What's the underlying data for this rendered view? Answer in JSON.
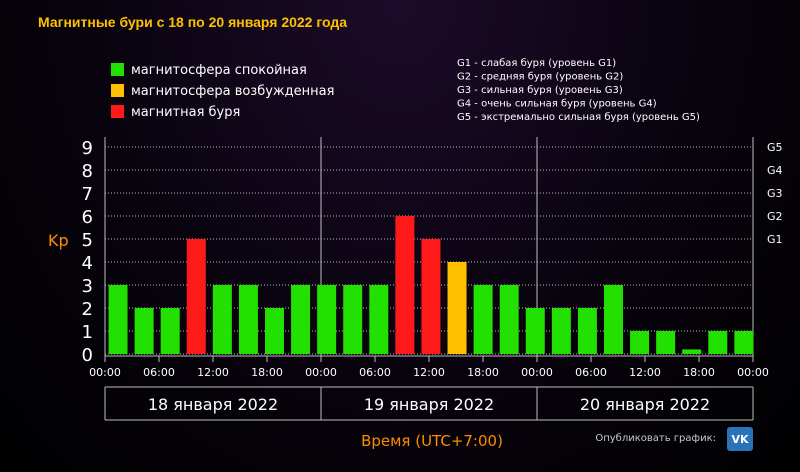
{
  "chart_data": {
    "type": "bar",
    "title": "Магнитные бури с 18 по 20 января 2022 года",
    "ylabel": "Kp",
    "xlabel": "Время (UTC+7:00)",
    "ylim": [
      0,
      9
    ],
    "yticks": [
      "0",
      "1",
      "2",
      "3",
      "4",
      "5",
      "6",
      "7",
      "8",
      "9"
    ],
    "storm_levels": [
      {
        "kp": 5,
        "label": "G1"
      },
      {
        "kp": 6,
        "label": "G2"
      },
      {
        "kp": 7,
        "label": "G3"
      },
      {
        "kp": 8,
        "label": "G4"
      },
      {
        "kp": 9,
        "label": "G5"
      }
    ],
    "xtick_labels": [
      "00:00",
      "06:00",
      "12:00",
      "18:00",
      "00:00",
      "06:00",
      "12:00",
      "18:00",
      "00:00",
      "06:00",
      "12:00",
      "18:00",
      "00:00"
    ],
    "days": [
      "18 января 2022",
      "19 января 2022",
      "20 января 2022"
    ],
    "values": [
      3,
      2,
      2,
      5,
      3,
      3,
      2,
      3,
      3,
      3,
      3,
      6,
      5,
      4,
      3,
      3,
      2,
      2,
      2,
      3,
      1,
      1,
      0.2,
      1,
      1
    ],
    "status": [
      "green",
      "green",
      "green",
      "red",
      "green",
      "green",
      "green",
      "green",
      "green",
      "green",
      "green",
      "red",
      "red",
      "orange",
      "green",
      "green",
      "green",
      "green",
      "green",
      "green",
      "green",
      "green",
      "green",
      "green",
      "green"
    ],
    "colors": {
      "green": "#22e000",
      "orange": "#ffc000",
      "red": "#ff1a1a",
      "title": "#ffc000",
      "axis_label": "#ff8c00",
      "grid": "#bdbdbd",
      "text": "#ffffff"
    },
    "legend": [
      {
        "label": "магнитосфера спокойная",
        "color": "#22e000"
      },
      {
        "label": "магнитосфера возбужденная",
        "color": "#ffc000"
      },
      {
        "label": "магнитная буря",
        "color": "#ff1a1a"
      }
    ],
    "storm_legend": [
      "G1 - слабая буря (уровень G1)",
      "G2 - средняя буря (уровень G2)",
      "G3 - сильная буря (уровень G3)",
      "G4 - очень сильная буря (уровень G4)",
      "G5 - экстремально сильная буря (уровень G5)"
    ],
    "grid": true
  },
  "footer": {
    "publish_label": "Опубликовать график:",
    "vk_icon": "vk-icon",
    "vk_text": "VK"
  }
}
